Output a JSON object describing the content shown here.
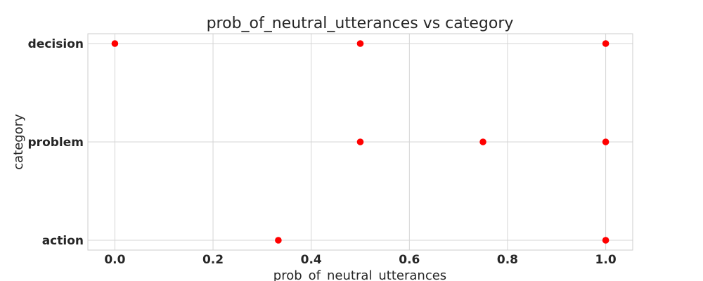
{
  "chart_data": {
    "type": "scatter",
    "title": "prob_of_neutral_utterances vs category",
    "xlabel": "prob_of_neutral_utterances",
    "ylabel": "category",
    "xlim": [
      -0.055,
      1.055
    ],
    "x_ticks": [
      "0.0",
      "0.2",
      "0.4",
      "0.6",
      "0.8",
      "1.0"
    ],
    "categories": [
      "action",
      "problem",
      "decision"
    ],
    "grid": true,
    "marker_color": "#ff0000",
    "points": [
      {
        "x": 0.0,
        "y": "decision"
      },
      {
        "x": 0.5,
        "y": "decision"
      },
      {
        "x": 1.0,
        "y": "decision"
      },
      {
        "x": 0.5,
        "y": "problem"
      },
      {
        "x": 0.75,
        "y": "problem"
      },
      {
        "x": 1.0,
        "y": "problem"
      },
      {
        "x": 0.333,
        "y": "action"
      },
      {
        "x": 1.0,
        "y": "action"
      }
    ]
  }
}
